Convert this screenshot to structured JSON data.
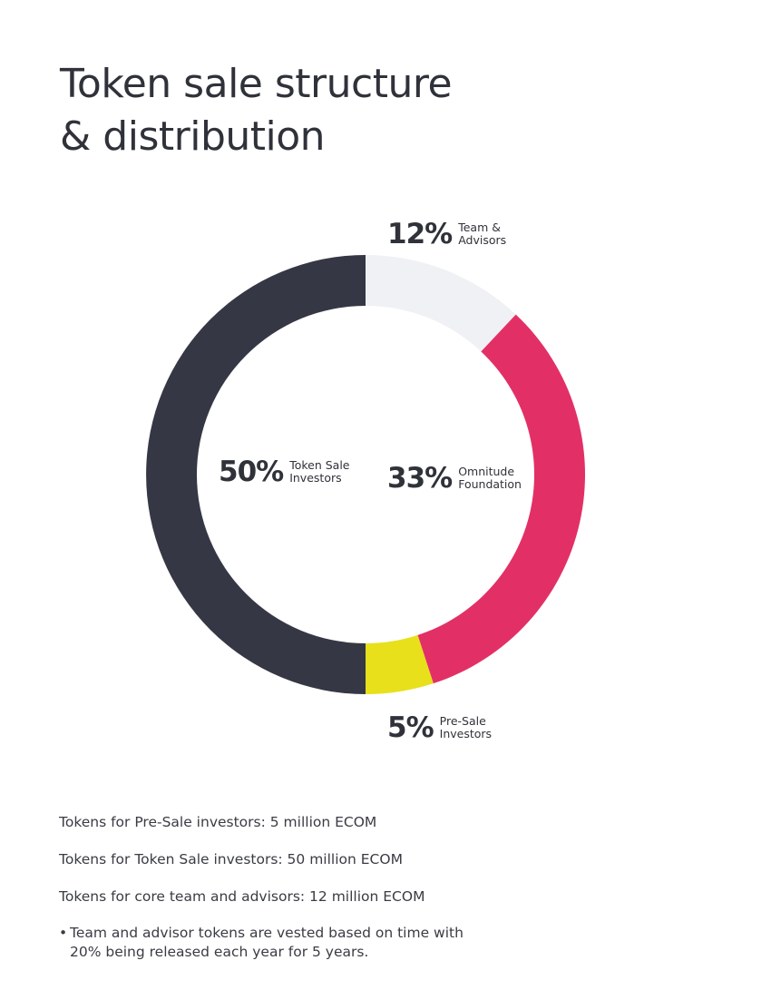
{
  "title": {
    "line1": "Token sale structure",
    "line2": "& distribution"
  },
  "chart_data": {
    "type": "pie",
    "variant": "donut",
    "title": "Token sale structure & distribution",
    "categories": [
      "Team & Advisors",
      "Omnitude Foundation",
      "Pre-Sale Investors",
      "Token Sale Investors"
    ],
    "values": [
      12,
      33,
      5,
      50
    ],
    "unit": "%",
    "labels": [
      {
        "pct": "12%",
        "name": "Team &\nAdvisors"
      },
      {
        "pct": "33%",
        "name": "Omnitude\nFoundation"
      },
      {
        "pct": "5%",
        "name": "Pre-Sale\nInvestors"
      },
      {
        "pct": "50%",
        "name": "Token Sale\nInvestors"
      }
    ],
    "colors": [
      "#f0f1f4",
      "#e23066",
      "#e7e01b",
      "#353744"
    ]
  },
  "notes": {
    "presale": "Tokens for Pre-Sale investors: 5 million ECOM",
    "tokensale": "Tokens for Token Sale investors: 50 million ECOM",
    "team": "Tokens for core team and advisors: 12 million ECOM",
    "bullet_marker": "•",
    "bullet_text": "Team and advisor tokens are vested based on time with 20% being released each year for 5 years."
  }
}
